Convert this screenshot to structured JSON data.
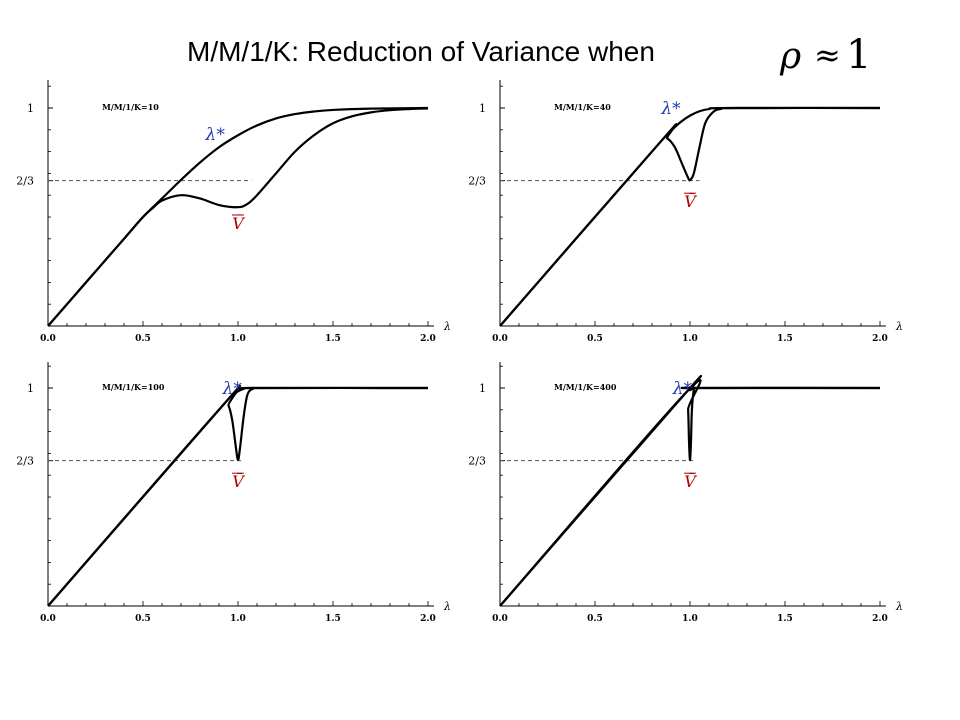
{
  "title": {
    "text": "M/M/1/K: Reduction of Variance when",
    "math": {
      "symbol": "ρ",
      "relation": "≈",
      "value": "1"
    }
  },
  "colors": {
    "curve": "#000000",
    "guide": "#555555",
    "lambda_star_annotation": "#1f3ab8",
    "v_bar_annotation": "#b00000"
  },
  "chart_data": [
    {
      "type": "line",
      "label": "M/M/1/K=10",
      "K": 10,
      "xlabel": "λ",
      "xlim": [
        0,
        2
      ],
      "ylim": [
        0,
        1.1
      ],
      "x_ticks": [
        0.0,
        0.5,
        1.0,
        1.5,
        2.0
      ],
      "x_tick_labels": [
        "0.0",
        "0.5",
        "1.0",
        "1.5",
        "2.0"
      ],
      "y_ticks": [
        {
          "value": 1,
          "label": "1"
        },
        {
          "value": 0.6667,
          "label": "2/3"
        }
      ],
      "reference_line": {
        "y": 0.6667,
        "x_range": [
          0,
          1.07
        ]
      },
      "series": [
        {
          "annotation": "λ*",
          "points": [
            [
              0,
              0
            ],
            [
              0.2,
              0.2
            ],
            [
              0.4,
              0.4
            ],
            [
              0.5,
              0.5
            ],
            [
              0.6,
              0.585
            ],
            [
              0.7,
              0.67
            ],
            [
              0.8,
              0.75
            ],
            [
              0.9,
              0.82
            ],
            [
              1.0,
              0.875
            ],
            [
              1.1,
              0.92
            ],
            [
              1.2,
              0.952
            ],
            [
              1.3,
              0.972
            ],
            [
              1.4,
              0.984
            ],
            [
              1.5,
              0.991
            ],
            [
              1.7,
              0.997
            ],
            [
              2.0,
              1.0
            ]
          ]
        },
        {
          "annotation": "V̄",
          "points": [
            [
              0,
              0
            ],
            [
              0.2,
              0.2
            ],
            [
              0.4,
              0.4
            ],
            [
              0.5,
              0.5
            ],
            [
              0.55,
              0.54
            ],
            [
              0.6,
              0.575
            ],
            [
              0.7,
              0.6
            ],
            [
              0.8,
              0.585
            ],
            [
              0.9,
              0.555
            ],
            [
              1.0,
              0.545
            ],
            [
              1.05,
              0.56
            ],
            [
              1.1,
              0.6
            ],
            [
              1.2,
              0.7
            ],
            [
              1.3,
              0.8
            ],
            [
              1.4,
              0.875
            ],
            [
              1.5,
              0.93
            ],
            [
              1.6,
              0.962
            ],
            [
              1.7,
              0.98
            ],
            [
              1.8,
              0.99
            ],
            [
              1.9,
              0.995
            ],
            [
              2.0,
              0.998
            ]
          ]
        }
      ],
      "annotations": [
        {
          "text": "λ*",
          "x": 0.88,
          "y": 0.88
        },
        {
          "text": "V̄",
          "x": 1.0,
          "y": 0.5
        }
      ]
    },
    {
      "type": "line",
      "label": "M/M/1/K=40",
      "K": 40,
      "xlabel": "λ",
      "xlim": [
        0,
        2
      ],
      "ylim": [
        0,
        1.1
      ],
      "x_ticks": [
        0.0,
        0.5,
        1.0,
        1.5,
        2.0
      ],
      "x_tick_labels": [
        "0.0",
        "0.5",
        "1.0",
        "1.5",
        "2.0"
      ],
      "y_ticks": [
        {
          "value": 1,
          "label": "1"
        },
        {
          "value": 0.6667,
          "label": "2/3"
        }
      ],
      "reference_line": {
        "y": 0.6667,
        "x_range": [
          0,
          1.05
        ]
      },
      "series": [
        {
          "annotation": "λ*",
          "points": [
            [
              0,
              0
            ],
            [
              0.85,
              0.85
            ],
            [
              0.9,
              0.895
            ],
            [
              0.95,
              0.935
            ],
            [
              1.0,
              0.965
            ],
            [
              1.05,
              0.985
            ],
            [
              1.1,
              0.995
            ],
            [
              1.2,
              1.0
            ],
            [
              2.0,
              1.0
            ]
          ]
        },
        {
          "annotation": "V̄",
          "points": [
            [
              0,
              0
            ],
            [
              0.85,
              0.85
            ],
            [
              0.88,
              0.86
            ],
            [
              0.92,
              0.82
            ],
            [
              0.96,
              0.74
            ],
            [
              0.99,
              0.68
            ],
            [
              1.0,
              0.67
            ],
            [
              1.02,
              0.7
            ],
            [
              1.05,
              0.82
            ],
            [
              1.08,
              0.93
            ],
            [
              1.12,
              0.98
            ],
            [
              1.16,
              0.995
            ],
            [
              1.25,
              1.0
            ],
            [
              2.0,
              1.0
            ]
          ]
        }
      ],
      "annotations": [
        {
          "text": "λ*",
          "x": 0.9,
          "y": 1.0
        },
        {
          "text": "V̄",
          "x": 1.0,
          "y": 0.6
        }
      ]
    },
    {
      "type": "line",
      "label": "M/M/1/K=100",
      "K": 100,
      "xlabel": "λ",
      "xlim": [
        0,
        2
      ],
      "ylim": [
        0,
        1.1
      ],
      "x_ticks": [
        0.0,
        0.5,
        1.0,
        1.5,
        2.0
      ],
      "x_tick_labels": [
        "0.0",
        "0.5",
        "1.0",
        "1.5",
        "2.0"
      ],
      "y_ticks": [
        {
          "value": 1,
          "label": "1"
        },
        {
          "value": 0.6667,
          "label": "2/3"
        }
      ],
      "reference_line": {
        "y": 0.6667,
        "x_range": [
          0,
          1.03
        ]
      },
      "series": [
        {
          "annotation": "λ*",
          "points": [
            [
              0,
              0
            ],
            [
              0.93,
              0.93
            ],
            [
              0.97,
              0.965
            ],
            [
              1.0,
              0.985
            ],
            [
              1.03,
              0.996
            ],
            [
              1.08,
              1.0
            ],
            [
              2.0,
              1.0
            ]
          ]
        },
        {
          "annotation": "V̄",
          "points": [
            [
              0,
              0
            ],
            [
              0.93,
              0.93
            ],
            [
              0.95,
              0.92
            ],
            [
              0.97,
              0.85
            ],
            [
              0.99,
              0.72
            ],
            [
              1.0,
              0.67
            ],
            [
              1.01,
              0.72
            ],
            [
              1.03,
              0.87
            ],
            [
              1.05,
              0.97
            ],
            [
              1.08,
              0.997
            ],
            [
              1.12,
              1.0
            ],
            [
              2.0,
              1.0
            ]
          ]
        }
      ],
      "annotations": [
        {
          "text": "λ*",
          "x": 0.97,
          "y": 1.0
        },
        {
          "text": "V̄",
          "x": 1.0,
          "y": 0.6
        }
      ]
    },
    {
      "type": "line",
      "label": "M/M/1/K=400",
      "K": 400,
      "xlabel": "λ",
      "xlim": [
        0,
        2
      ],
      "ylim": [
        0,
        1.1
      ],
      "x_ticks": [
        0.0,
        0.5,
        1.0,
        1.5,
        2.0
      ],
      "x_tick_labels": [
        "0.0",
        "0.5",
        "1.0",
        "1.5",
        "2.0"
      ],
      "y_ticks": [
        {
          "value": 1,
          "label": "1"
        },
        {
          "value": 0.6667,
          "label": "2/3"
        }
      ],
      "reference_line": {
        "y": 0.6667,
        "x_range": [
          0,
          1.03
        ]
      },
      "series": [
        {
          "annotation": "λ*",
          "points": [
            [
              0,
              0
            ],
            [
              0.98,
              0.98
            ],
            [
              1.0,
              0.99
            ],
            [
              1.02,
              0.999
            ],
            [
              1.04,
              1.0
            ],
            [
              2.0,
              1.0
            ]
          ]
        },
        {
          "annotation": "V̄",
          "points": [
            [
              0,
              0
            ],
            [
              0.98,
              0.98
            ],
            [
              0.99,
              0.9
            ],
            [
              0.995,
              0.75
            ],
            [
              1.0,
              0.67
            ],
            [
              1.005,
              0.75
            ],
            [
              1.01,
              0.9
            ],
            [
              1.02,
              0.99
            ],
            [
              1.03,
              1.0
            ],
            [
              2.0,
              1.0
            ]
          ]
        }
      ],
      "annotations": [
        {
          "text": "λ*",
          "x": 0.96,
          "y": 1.0
        },
        {
          "text": "V̄",
          "x": 1.0,
          "y": 0.6
        }
      ]
    }
  ]
}
